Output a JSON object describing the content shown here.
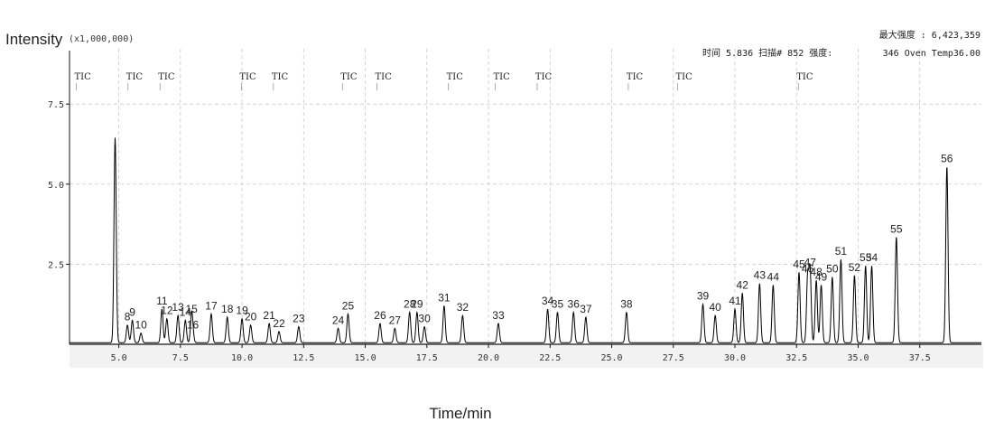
{
  "chart_data": {
    "type": "line",
    "ylabel": "Intensity",
    "y_multiplier": "(x1,000,000)",
    "xlabel": "Time/min",
    "xlim": [
      3.0,
      40.0
    ],
    "ylim": [
      0,
      9.0
    ],
    "x_ticks": [
      "5.0",
      "7.5",
      "10.0",
      "12.5",
      "15.0",
      "17.5",
      "20.0",
      "22.5",
      "25.0",
      "27.5",
      "30.0",
      "32.5",
      "35.0",
      "37.5"
    ],
    "x_tick_values": [
      5.0,
      7.5,
      10.0,
      12.5,
      15.0,
      17.5,
      20.0,
      22.5,
      25.0,
      27.5,
      30.0,
      32.5,
      35.0,
      37.5
    ],
    "y_ticks": [
      "2.5",
      "5.0",
      "7.5"
    ],
    "y_tick_values": [
      2.5,
      5.0,
      7.5
    ],
    "grid": true,
    "header": {
      "max_intensity": "最大强度 : 6,423,359",
      "time_info": "时间  5.836  扫描#  852  强度:",
      "scan_info": "346  Oven Temp36.00"
    },
    "tic_markers": [
      {
        "label": "TIC",
        "x": 3.2
      },
      {
        "label": "TIC",
        "x": 5.3
      },
      {
        "label": "TIC",
        "x": 6.6
      },
      {
        "label": "TIC",
        "x": 9.9
      },
      {
        "label": "TIC",
        "x": 11.2
      },
      {
        "label": "TIC",
        "x": 14.0
      },
      {
        "label": "TIC",
        "x": 15.4
      },
      {
        "label": "TIC",
        "x": 18.3
      },
      {
        "label": "TIC",
        "x": 20.2
      },
      {
        "label": "TIC",
        "x": 21.9
      },
      {
        "label": "TIC",
        "x": 25.6
      },
      {
        "label": "TIC",
        "x": 27.6
      },
      {
        "label": "TIC",
        "x": 32.5
      }
    ],
    "peaks": [
      {
        "x": 4.85,
        "y": 6.4,
        "label": ""
      },
      {
        "x": 5.35,
        "y": 0.55,
        "label": "8"
      },
      {
        "x": 5.55,
        "y": 0.7,
        "label": "9"
      },
      {
        "x": 5.9,
        "y": 0.3,
        "label": "10"
      },
      {
        "x": 6.75,
        "y": 1.05,
        "label": "11"
      },
      {
        "x": 6.95,
        "y": 0.75,
        "label": "12"
      },
      {
        "x": 7.4,
        "y": 0.85,
        "label": "13"
      },
      {
        "x": 7.7,
        "y": 0.7,
        "label": "14"
      },
      {
        "x": 7.95,
        "y": 0.8,
        "label": "15"
      },
      {
        "x": 8.0,
        "y": 0.3,
        "label": "16"
      },
      {
        "x": 8.75,
        "y": 0.9,
        "label": "17"
      },
      {
        "x": 9.4,
        "y": 0.8,
        "label": "18"
      },
      {
        "x": 10.0,
        "y": 0.75,
        "label": "19"
      },
      {
        "x": 10.35,
        "y": 0.55,
        "label": "20"
      },
      {
        "x": 11.1,
        "y": 0.6,
        "label": "21"
      },
      {
        "x": 11.5,
        "y": 0.35,
        "label": "22"
      },
      {
        "x": 12.3,
        "y": 0.5,
        "label": "23"
      },
      {
        "x": 13.9,
        "y": 0.45,
        "label": "24"
      },
      {
        "x": 14.3,
        "y": 0.9,
        "label": "25"
      },
      {
        "x": 15.6,
        "y": 0.6,
        "label": "26"
      },
      {
        "x": 16.2,
        "y": 0.45,
        "label": "27"
      },
      {
        "x": 16.8,
        "y": 0.95,
        "label": "28"
      },
      {
        "x": 17.1,
        "y": 0.95,
        "label": "29"
      },
      {
        "x": 17.4,
        "y": 0.5,
        "label": "30"
      },
      {
        "x": 18.2,
        "y": 1.15,
        "label": "31"
      },
      {
        "x": 18.95,
        "y": 0.85,
        "label": "32"
      },
      {
        "x": 20.4,
        "y": 0.6,
        "label": "33"
      },
      {
        "x": 22.4,
        "y": 1.05,
        "label": "34"
      },
      {
        "x": 22.8,
        "y": 0.95,
        "label": "35"
      },
      {
        "x": 23.45,
        "y": 0.95,
        "label": "36"
      },
      {
        "x": 23.95,
        "y": 0.8,
        "label": "37"
      },
      {
        "x": 25.6,
        "y": 0.95,
        "label": "38"
      },
      {
        "x": 28.7,
        "y": 1.2,
        "label": "39"
      },
      {
        "x": 29.2,
        "y": 0.85,
        "label": "40"
      },
      {
        "x": 30.0,
        "y": 1.05,
        "label": "41"
      },
      {
        "x": 30.3,
        "y": 1.55,
        "label": "42"
      },
      {
        "x": 31.0,
        "y": 1.85,
        "label": "43"
      },
      {
        "x": 31.55,
        "y": 1.8,
        "label": "44"
      },
      {
        "x": 32.6,
        "y": 2.2,
        "label": "45"
      },
      {
        "x": 32.95,
        "y": 2.05,
        "label": "46"
      },
      {
        "x": 33.05,
        "y": 2.25,
        "label": "47"
      },
      {
        "x": 33.3,
        "y": 1.95,
        "label": "48"
      },
      {
        "x": 33.5,
        "y": 1.8,
        "label": "49"
      },
      {
        "x": 33.95,
        "y": 2.05,
        "label": "50"
      },
      {
        "x": 34.3,
        "y": 2.6,
        "label": "51"
      },
      {
        "x": 34.85,
        "y": 2.1,
        "label": "52"
      },
      {
        "x": 35.3,
        "y": 2.4,
        "label": "53"
      },
      {
        "x": 35.55,
        "y": 2.4,
        "label": "54"
      },
      {
        "x": 36.55,
        "y": 3.3,
        "label": "55"
      },
      {
        "x": 38.6,
        "y": 5.5,
        "label": "56"
      }
    ]
  }
}
